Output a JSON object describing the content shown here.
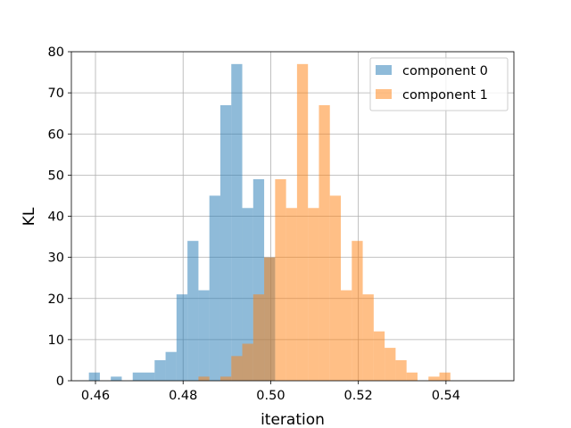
{
  "chart_data": {
    "type": "bar",
    "title": "",
    "xlabel": "iteration",
    "ylabel": "KL",
    "xlim": [
      0.4545,
      0.5555
    ],
    "ylim": [
      0,
      80
    ],
    "xticks": [
      "0.46",
      "0.48",
      "0.50",
      "0.52",
      "0.54"
    ],
    "yticks": [
      "0",
      "10",
      "20",
      "30",
      "40",
      "50",
      "60",
      "70",
      "80"
    ],
    "grid": true,
    "legend_position": "top-right",
    "bin_width": 0.0025,
    "series": [
      {
        "name": "component 0",
        "color": "#1f77b4",
        "alpha": 0.5,
        "bin_starts": [
          0.4585,
          0.461,
          0.4635,
          0.466,
          0.4685,
          0.471,
          0.4735,
          0.476,
          0.4785,
          0.481,
          0.4835,
          0.486,
          0.4885,
          0.491,
          0.4935,
          0.496,
          0.4985
        ],
        "values": [
          2,
          0,
          1,
          0,
          2,
          2,
          5,
          7,
          21,
          34,
          22,
          45,
          67,
          77,
          42,
          49,
          30
        ]
      },
      {
        "name": "component 1",
        "color": "#ff7f0e",
        "alpha": 0.5,
        "bin_starts": [
          0.4835,
          0.486,
          0.4885,
          0.491,
          0.4935,
          0.496,
          0.4985,
          0.501,
          0.5035,
          0.506,
          0.5085,
          0.511,
          0.5135,
          0.516,
          0.5185,
          0.521,
          0.5235,
          0.526,
          0.5285,
          0.531,
          0.5335,
          0.536,
          0.5385
        ],
        "values": [
          1,
          0,
          1,
          6,
          9,
          21,
          30,
          49,
          42,
          77,
          42,
          67,
          45,
          22,
          34,
          21,
          12,
          8,
          5,
          2,
          0,
          1,
          2
        ]
      }
    ]
  }
}
